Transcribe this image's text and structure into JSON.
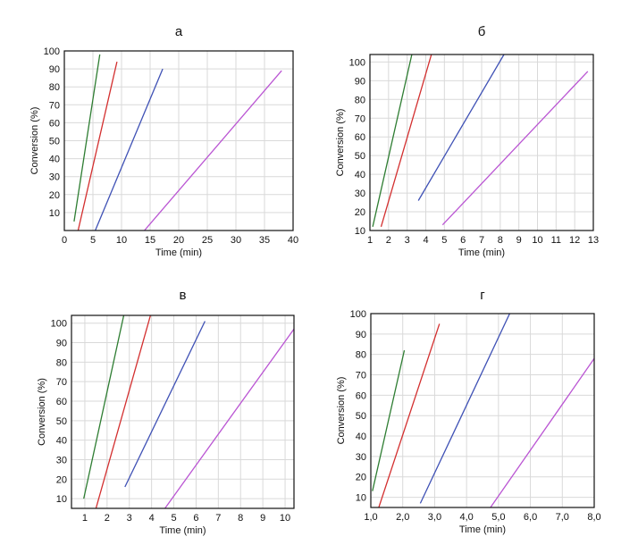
{
  "chart_data": [
    {
      "type": "line",
      "title": "а",
      "xlabel": "Time (min)",
      "ylabel": "Conversion (%)",
      "xlim": [
        0,
        40
      ],
      "ylim": [
        0,
        100
      ],
      "x_ticks": [
        "0",
        "5",
        "10",
        "15",
        "20",
        "25",
        "30",
        "35",
        "40"
      ],
      "y_ticks": [
        "10",
        "20",
        "30",
        "40",
        "50",
        "60",
        "70",
        "80",
        "90",
        "100"
      ],
      "grid": true,
      "series": [
        {
          "color": "#2e7d32",
          "x": [
            1.7,
            6.2
          ],
          "y": [
            5,
            98
          ]
        },
        {
          "color": "#d32f2f",
          "x": [
            2.4,
            9.2
          ],
          "y": [
            0,
            94
          ]
        },
        {
          "color": "#3f51b5",
          "x": [
            5.4,
            17.2
          ],
          "y": [
            0,
            90
          ]
        },
        {
          "color": "#ba55d3",
          "x": [
            14.0,
            38.0
          ],
          "y": [
            0,
            89
          ]
        }
      ]
    },
    {
      "type": "line",
      "title": "б",
      "xlabel": "Time (min)",
      "ylabel": "Conversion (%)",
      "xlim": [
        1,
        13
      ],
      "ylim": [
        10,
        104
      ],
      "x_ticks": [
        "1",
        "2",
        "3",
        "4",
        "5",
        "6",
        "7",
        "8",
        "9",
        "10",
        "11",
        "12",
        "13"
      ],
      "y_ticks": [
        "10",
        "20",
        "30",
        "40",
        "50",
        "60",
        "70",
        "80",
        "90",
        "100"
      ],
      "grid": true,
      "series": [
        {
          "color": "#2e7d32",
          "x": [
            1.15,
            3.25
          ],
          "y": [
            12,
            104
          ]
        },
        {
          "color": "#d32f2f",
          "x": [
            1.6,
            4.3
          ],
          "y": [
            12,
            104
          ]
        },
        {
          "color": "#3f51b5",
          "x": [
            3.6,
            8.2
          ],
          "y": [
            26,
            104
          ]
        },
        {
          "color": "#ba55d3",
          "x": [
            4.9,
            12.7
          ],
          "y": [
            13,
            95
          ]
        }
      ]
    },
    {
      "type": "line",
      "title": "в",
      "xlabel": "Time (min)",
      "ylabel": "Conversion (%)",
      "xlim": [
        0.4,
        10.4
      ],
      "ylim": [
        5,
        104
      ],
      "x_ticks": [
        "1",
        "2",
        "3",
        "4",
        "5",
        "6",
        "7",
        "8",
        "9",
        "10"
      ],
      "y_ticks": [
        "10",
        "20",
        "30",
        "40",
        "50",
        "60",
        "70",
        "80",
        "90",
        "100"
      ],
      "grid": true,
      "series": [
        {
          "color": "#2e7d32",
          "x": [
            0.95,
            2.75
          ],
          "y": [
            10,
            104
          ]
        },
        {
          "color": "#d32f2f",
          "x": [
            1.5,
            3.95
          ],
          "y": [
            5,
            104
          ]
        },
        {
          "color": "#3f51b5",
          "x": [
            2.8,
            6.4
          ],
          "y": [
            16,
            101
          ]
        },
        {
          "color": "#ba55d3",
          "x": [
            4.6,
            10.4
          ],
          "y": [
            5,
            97
          ]
        }
      ]
    },
    {
      "type": "line",
      "title": "г",
      "xlabel": "Time (min)",
      "ylabel": "Conversion (%)",
      "xlim": [
        1.0,
        8.0
      ],
      "ylim": [
        5,
        100
      ],
      "x_ticks": [
        "1,0",
        "2,0",
        "3,0",
        "4,0",
        "5,0",
        "6,0",
        "7,0",
        "8,0"
      ],
      "y_ticks": [
        "10",
        "20",
        "30",
        "40",
        "50",
        "60",
        "70",
        "80",
        "90",
        "100"
      ],
      "grid": true,
      "series": [
        {
          "color": "#2e7d32",
          "x": [
            1.05,
            2.05
          ],
          "y": [
            13,
            82
          ]
        },
        {
          "color": "#d32f2f",
          "x": [
            1.25,
            3.15
          ],
          "y": [
            5,
            95
          ]
        },
        {
          "color": "#3f51b5",
          "x": [
            2.55,
            5.35
          ],
          "y": [
            7,
            100
          ]
        },
        {
          "color": "#ba55d3",
          "x": [
            4.75,
            8.0
          ],
          "y": [
            5,
            78
          ]
        }
      ]
    }
  ]
}
